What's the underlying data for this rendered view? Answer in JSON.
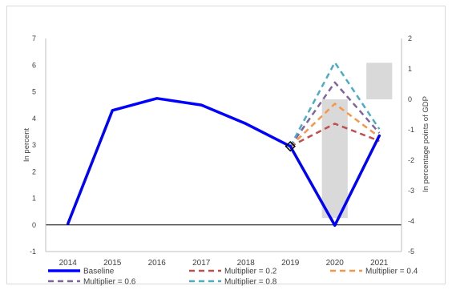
{
  "chart_data": {
    "type": "line",
    "categories": [
      "2014",
      "2015",
      "2016",
      "2017",
      "2018",
      "2019",
      "2020",
      "2021"
    ],
    "ylabel": "In percent",
    "y2label": "In percentage points of GDP",
    "ylim": [
      -1,
      7
    ],
    "y2lim": [
      -5,
      2
    ],
    "yticks": [
      "-1",
      "0",
      "1",
      "2",
      "3",
      "4",
      "5",
      "6",
      "7"
    ],
    "y2ticks": [
      "-5",
      "-4",
      "-3",
      "-2",
      "-1",
      "0",
      "1",
      "2"
    ],
    "grid": false,
    "legend_position": "bottom",
    "bars": {
      "axis": "secondary",
      "color": "#d9d9d9",
      "values": {
        "2020": -3.9,
        "2021": 1.2
      }
    },
    "series": [
      {
        "name": "Baseline",
        "color": "#0000ff",
        "dash": "solid",
        "width": 3.5,
        "values": [
          0.05,
          4.3,
          4.75,
          4.5,
          3.8,
          2.95,
          -0.02,
          3.35
        ]
      },
      {
        "name": "Multiplier = 0.2",
        "color": "#c0504d",
        "dash": "dashed",
        "width": 2.5,
        "values": [
          null,
          null,
          null,
          null,
          null,
          2.95,
          3.8,
          3.15
        ]
      },
      {
        "name": "Multiplier = 0.4",
        "color": "#f79646",
        "dash": "dashed",
        "width": 2.5,
        "values": [
          null,
          null,
          null,
          null,
          null,
          2.95,
          4.55,
          3.3
        ]
      },
      {
        "name": "Multiplier = 0.6",
        "color": "#8064a2",
        "dash": "dashed",
        "width": 2.5,
        "values": [
          null,
          null,
          null,
          null,
          null,
          2.95,
          5.35,
          3.45
        ]
      },
      {
        "name": "Multiplier = 0.8",
        "color": "#4bacc6",
        "dash": "dashed",
        "width": 2.5,
        "values": [
          null,
          null,
          null,
          null,
          null,
          2.95,
          6.1,
          3.6
        ]
      }
    ]
  }
}
